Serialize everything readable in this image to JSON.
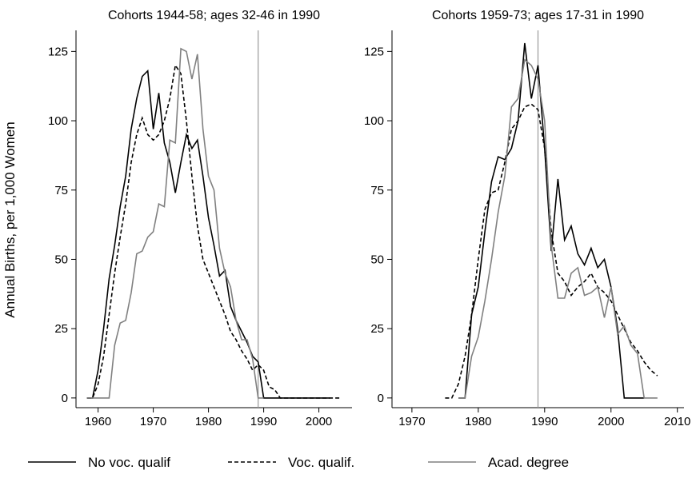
{
  "y_label": "Annual Births, per 1,000 Women",
  "legend": [
    {
      "name": "No voc. qualif",
      "color": "#000000",
      "style": "solid"
    },
    {
      "name": "Voc. qualif.",
      "color": "#000000",
      "style": "dashed"
    },
    {
      "name": "Acad. degree",
      "color": "#808080",
      "style": "solid"
    }
  ],
  "chart_data": [
    {
      "type": "line",
      "title": "Cohorts 1944-58; ages 32-46 in 1990",
      "xlim": [
        1956,
        2006
      ],
      "xticks": [
        1960,
        1970,
        1980,
        1990,
        2000
      ],
      "ylim": [
        -3.5,
        132.6
      ],
      "yticks": [
        0,
        25,
        50,
        75,
        100,
        125
      ],
      "vline": 1989,
      "series": [
        {
          "color": "#000000",
          "style": "solid",
          "x": [
            1958,
            1959,
            1960,
            1961,
            1962,
            1963,
            1964,
            1965,
            1966,
            1967,
            1968,
            1969,
            1970,
            1971,
            1972,
            1973,
            1974,
            1975,
            1976,
            1977,
            1978,
            1979,
            1980,
            1981,
            1982,
            1983,
            1984,
            1985,
            1986,
            1987,
            1988,
            1989,
            1990,
            2002
          ],
          "values": [
            0,
            0,
            10,
            25,
            43,
            55,
            69,
            80,
            97,
            108,
            116,
            118,
            97,
            110,
            92,
            85,
            74,
            85,
            95,
            90,
            93,
            80,
            65,
            55,
            44,
            46,
            33,
            28,
            24,
            20,
            15,
            13,
            0,
            0
          ]
        },
        {
          "color": "#000000",
          "style": "dashed",
          "x": [
            1958,
            1959,
            1960,
            1961,
            1962,
            1963,
            1964,
            1965,
            1966,
            1967,
            1968,
            1969,
            1970,
            1971,
            1972,
            1973,
            1974,
            1975,
            1976,
            1977,
            1978,
            1979,
            1980,
            1981,
            1982,
            1983,
            1984,
            1985,
            1986,
            1987,
            1988,
            1989,
            1990,
            1991,
            1992,
            1993,
            2004
          ],
          "values": [
            0,
            0,
            5,
            15,
            30,
            45,
            58,
            70,
            85,
            95,
            101,
            95,
            93,
            95,
            100,
            108,
            120,
            117,
            100,
            80,
            62,
            50,
            45,
            40,
            35,
            30,
            24,
            21,
            17,
            14,
            10,
            12,
            10,
            4,
            3,
            0,
            0
          ]
        },
        {
          "color": "#808080",
          "style": "solid",
          "x": [
            1958,
            1962,
            1963,
            1964,
            1965,
            1966,
            1967,
            1968,
            1969,
            1970,
            1971,
            1972,
            1973,
            1974,
            1975,
            1976,
            1977,
            1978,
            1979,
            1980,
            1981,
            1982,
            1983,
            1984,
            1985,
            1986,
            1987,
            1988,
            1989,
            1990
          ],
          "values": [
            0,
            0,
            19,
            27,
            28,
            38,
            52,
            53,
            58,
            60,
            70,
            69,
            93,
            92,
            126,
            125,
            115,
            124,
            97,
            80,
            75,
            54,
            45,
            40,
            28,
            21,
            21,
            14,
            0,
            0
          ]
        }
      ]
    },
    {
      "type": "line",
      "title": "Cohorts 1959-73; ages 17-31 in 1990",
      "xlim": [
        1967,
        2011
      ],
      "xticks": [
        1970,
        1980,
        1990,
        2000,
        2010
      ],
      "ylim": [
        -3.5,
        132.6
      ],
      "yticks": [
        0,
        25,
        50,
        75,
        100,
        125
      ],
      "vline": 1989,
      "series": [
        {
          "color": "#000000",
          "style": "solid",
          "x": [
            1977,
            1978,
            1979,
            1980,
            1981,
            1982,
            1983,
            1984,
            1985,
            1986,
            1987,
            1988,
            1989,
            1990,
            1991,
            1992,
            1993,
            1994,
            1995,
            1996,
            1997,
            1998,
            1999,
            2000,
            2001,
            2002,
            2005
          ],
          "values": [
            0,
            0,
            30,
            40,
            60,
            78,
            87,
            86,
            90,
            100,
            128,
            108,
            120,
            90,
            53,
            79,
            57,
            62,
            52,
            48,
            54,
            47,
            50,
            40,
            25,
            0,
            0
          ]
        },
        {
          "color": "#000000",
          "style": "dashed",
          "x": [
            1975,
            1976,
            1977,
            1978,
            1979,
            1980,
            1981,
            1982,
            1983,
            1984,
            1985,
            1986,
            1987,
            1988,
            1989,
            1990,
            1991,
            1992,
            1993,
            1994,
            1995,
            1996,
            1997,
            1998,
            1999,
            2000,
            2001,
            2002,
            2003,
            2004,
            2005,
            2006,
            2007
          ],
          "values": [
            0,
            0,
            5,
            15,
            30,
            50,
            68,
            74,
            75,
            85,
            97,
            100,
            105,
            106,
            104,
            90,
            60,
            45,
            42,
            37,
            40,
            42,
            45,
            40,
            38,
            35,
            30,
            25,
            20,
            17,
            13,
            10,
            8
          ]
        },
        {
          "color": "#808080",
          "style": "solid",
          "x": [
            1977,
            1978,
            1979,
            1980,
            1981,
            1982,
            1983,
            1984,
            1985,
            1986,
            1987,
            1988,
            1989,
            1990,
            1991,
            1992,
            1993,
            1994,
            1995,
            1996,
            1997,
            1998,
            1999,
            2000,
            2001,
            2002,
            2003,
            2004,
            2005,
            2007
          ],
          "values": [
            0,
            0,
            15,
            22,
            35,
            50,
            67,
            80,
            105,
            108,
            122,
            120,
            115,
            100,
            55,
            36,
            36,
            45,
            47,
            37,
            38,
            40,
            29,
            40,
            23,
            26,
            19,
            16,
            0,
            0
          ]
        }
      ]
    }
  ]
}
